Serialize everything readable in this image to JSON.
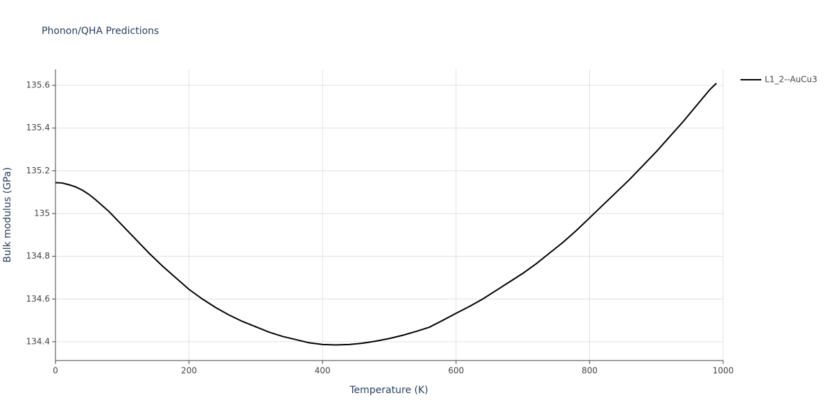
{
  "chart_data": {
    "type": "line",
    "title": "Phonon/QHA Predictions",
    "x_label": "Temperature (K)",
    "y_label": "Bulk modulus (GPa)",
    "x": [
      0,
      10,
      20,
      30,
      40,
      50,
      60,
      80,
      100,
      120,
      140,
      160,
      180,
      200,
      220,
      240,
      260,
      280,
      300,
      320,
      340,
      360,
      380,
      400,
      420,
      440,
      460,
      480,
      500,
      520,
      540,
      560,
      580,
      600,
      620,
      640,
      660,
      680,
      700,
      720,
      740,
      760,
      780,
      800,
      820,
      840,
      860,
      880,
      900,
      920,
      940,
      960,
      980,
      990
    ],
    "series": [
      {
        "name": "L1_2--AuCu3",
        "color": "#000000",
        "values": [
          135.145,
          135.143,
          135.135,
          135.125,
          135.11,
          135.09,
          135.065,
          135.01,
          134.945,
          134.88,
          134.815,
          134.755,
          134.7,
          134.645,
          134.6,
          134.56,
          134.525,
          134.495,
          134.47,
          134.445,
          134.425,
          134.41,
          134.395,
          134.387,
          134.385,
          134.387,
          134.393,
          134.403,
          134.415,
          134.43,
          134.448,
          134.468,
          134.5,
          134.533,
          134.565,
          134.6,
          134.64,
          134.68,
          134.72,
          134.765,
          134.815,
          134.865,
          134.92,
          134.98,
          135.04,
          135.1,
          135.16,
          135.225,
          135.29,
          135.36,
          135.43,
          135.505,
          135.58,
          135.61
        ]
      }
    ],
    "xlim": [
      0,
      1000
    ],
    "xticks": [
      0,
      200,
      400,
      600,
      800,
      1000
    ],
    "ylim": [
      134.312,
      135.675
    ],
    "yticks": [
      134.4,
      134.6,
      134.8,
      135,
      135.2,
      135.4,
      135.6
    ],
    "grid": true,
    "legend": "right"
  }
}
